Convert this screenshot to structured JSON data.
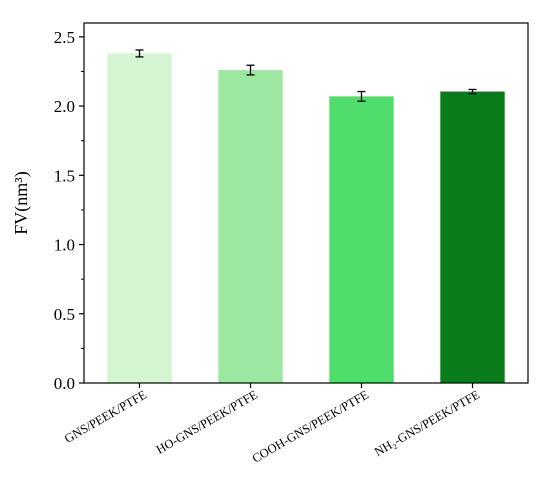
{
  "chart_data": {
    "type": "bar",
    "categories": [
      "GNS/PEEK/PTFE",
      "HO-GNS/PEEK/PTFE",
      "COOH-GNS/PEEK/PTFE",
      "NH₂-GNS/PEEK/PTFE"
    ],
    "values": [
      2.38,
      2.26,
      2.07,
      2.105
    ],
    "errors": [
      0.025,
      0.035,
      0.035,
      0.015
    ],
    "colors": [
      "#d3f5d1",
      "#9de8a1",
      "#4fdc6a",
      "#0a7b1b"
    ],
    "ylabel": "FV(nm³)",
    "ylim": [
      0,
      2.6
    ],
    "yticks": [
      "0.0",
      "0.5",
      "1.0",
      "1.5",
      "2.0",
      "2.5"
    ],
    "grid": false,
    "legend": "none"
  }
}
